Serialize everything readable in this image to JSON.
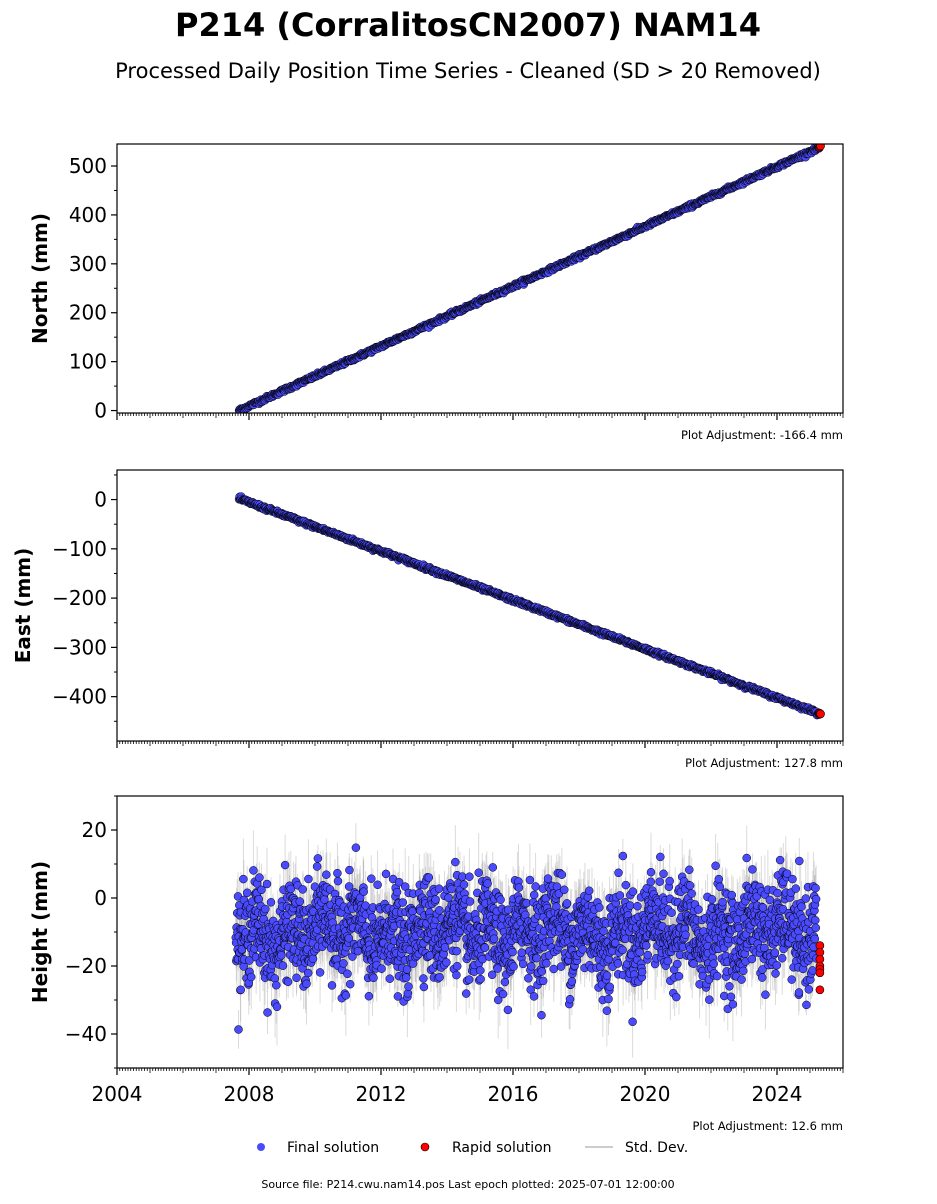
{
  "title": "P214 (CorralitosCN2007) NAM14",
  "subtitle": "Processed Daily Position Time Series - Cleaned (SD > 20 Removed)",
  "colors": {
    "final": "#4a4aff",
    "rapid": "#ff0000",
    "outline": "#000000",
    "stddev": "#999999"
  },
  "legend": {
    "final": "Final solution",
    "rapid": "Rapid solution",
    "stddev": "Std. Dev."
  },
  "footer": "Source file: P214.cwu.nam14.pos  Last epoch plotted: 2025-07-01 12:00:00",
  "chart_data": [
    {
      "type": "scatter",
      "ylabel": "North (mm)",
      "adjustment": "Plot Adjustment: -166.4 mm",
      "xlim": [
        2004.0,
        2026.0
      ],
      "ylim": [
        -5,
        545
      ],
      "yticks": [
        0,
        100,
        200,
        300,
        400,
        500
      ],
      "yminor": 50,
      "xticks": [
        2004,
        2008,
        2012,
        2016,
        2020,
        2024
      ],
      "show_xtick_labels": false,
      "trend": {
        "x0": 2007.7,
        "y0": 0,
        "rate_per_year": 30.6,
        "x1": 2025.3
      },
      "noise_mm": 1.8,
      "rapid_points": [
        [
          2025.28,
          538
        ],
        [
          2025.3,
          540
        ],
        [
          2025.32,
          541
        ]
      ],
      "show_std_dev": false
    },
    {
      "type": "scatter",
      "ylabel": "East (mm)",
      "adjustment": "Plot Adjustment: 127.8 mm",
      "xlim": [
        2004.0,
        2026.0
      ],
      "ylim": [
        -490,
        60
      ],
      "yticks": [
        0,
        -100,
        -200,
        -300,
        -400
      ],
      "yminor": 50,
      "xticks": [
        2004,
        2008,
        2012,
        2016,
        2020,
        2024
      ],
      "show_xtick_labels": false,
      "trend": {
        "x0": 2007.7,
        "y0": 2,
        "rate_per_year": -24.8,
        "x1": 2025.3
      },
      "noise_mm": 1.8,
      "rapid_points": [
        [
          2025.28,
          -433
        ],
        [
          2025.3,
          -434
        ],
        [
          2025.32,
          -435
        ]
      ],
      "show_std_dev": false
    },
    {
      "type": "scatter",
      "ylabel": "Height (mm)",
      "adjustment": "Plot Adjustment: 12.6 mm",
      "xlim": [
        2004.0,
        2026.0
      ],
      "ylim": [
        -50,
        30
      ],
      "yticks": [
        20,
        0,
        -20,
        -40
      ],
      "yminor": 10,
      "xticks": [
        2004,
        2008,
        2012,
        2016,
        2020,
        2024
      ],
      "xtick_labels": [
        "2004",
        "2008",
        "2012",
        "2016",
        "2020",
        "2024"
      ],
      "show_xtick_labels": true,
      "trend": {
        "x0": 2007.6,
        "y0": -10,
        "rate_per_year": 0,
        "x1": 2025.2
      },
      "noise_mm": 7,
      "seasonal_mm": 4,
      "rapid_points": [
        [
          2025.3,
          -14
        ],
        [
          2025.3,
          -16
        ],
        [
          2025.3,
          -18
        ],
        [
          2025.3,
          -20
        ],
        [
          2025.3,
          -21
        ],
        [
          2025.3,
          -22
        ],
        [
          2025.3,
          -27
        ]
      ],
      "show_std_dev": true
    }
  ]
}
